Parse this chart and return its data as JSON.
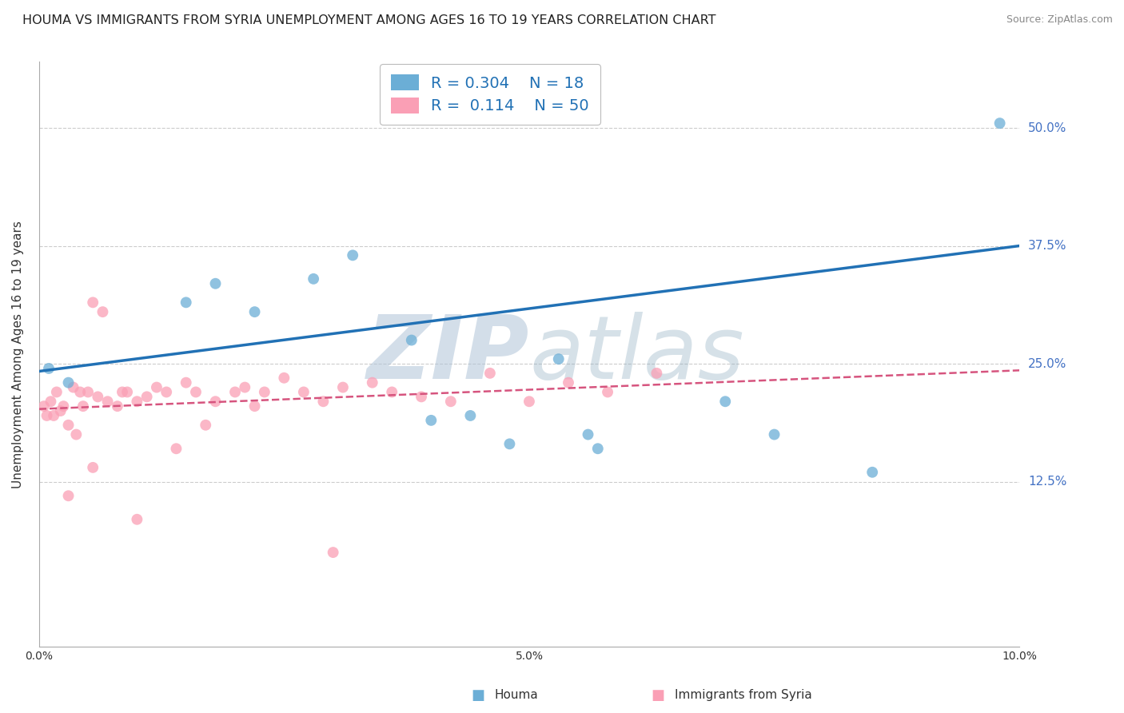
{
  "title": "HOUMA VS IMMIGRANTS FROM SYRIA UNEMPLOYMENT AMONG AGES 16 TO 19 YEARS CORRELATION CHART",
  "source_text": "Source: ZipAtlas.com",
  "ylabel": "Unemployment Among Ages 16 to 19 years",
  "xlim": [
    0.0,
    10.0
  ],
  "ylim": [
    -5.0,
    57.0
  ],
  "ytick_labels": [
    "12.5%",
    "25.0%",
    "37.5%",
    "50.0%"
  ],
  "ytick_values": [
    12.5,
    25.0,
    37.5,
    50.0
  ],
  "xtick_labels": [
    "0.0%",
    "",
    "",
    "",
    "",
    "5.0%",
    "",
    "",
    "",
    "",
    "10.0%"
  ],
  "xtick_values": [
    0.0,
    1.0,
    2.0,
    3.0,
    4.0,
    5.0,
    6.0,
    7.0,
    8.0,
    9.0,
    10.0
  ],
  "houma_color": "#6baed6",
  "syria_color": "#fa9fb5",
  "houma_line_color": "#2171b5",
  "syria_line_color": "#d6547e",
  "legend_R_houma": "0.304",
  "legend_N_houma": "18",
  "legend_R_syria": "0.114",
  "legend_N_syria": "50",
  "houma_label": "Houma",
  "syria_label": "Immigrants from Syria",
  "houma_scatter_x": [
    0.1,
    0.3,
    1.5,
    1.8,
    2.2,
    2.8,
    3.2,
    3.8,
    4.0,
    4.4,
    5.3,
    5.6,
    5.7,
    7.0,
    7.5,
    8.5,
    9.8,
    4.8
  ],
  "houma_scatter_y": [
    24.5,
    23.0,
    31.5,
    33.5,
    30.5,
    34.0,
    36.5,
    27.5,
    19.0,
    19.5,
    25.5,
    17.5,
    16.0,
    21.0,
    17.5,
    13.5,
    50.5,
    16.5
  ],
  "syria_scatter_x": [
    0.05,
    0.08,
    0.12,
    0.15,
    0.18,
    0.22,
    0.25,
    0.3,
    0.35,
    0.38,
    0.42,
    0.45,
    0.5,
    0.55,
    0.6,
    0.65,
    0.7,
    0.8,
    0.85,
    0.9,
    1.0,
    1.1,
    1.2,
    1.3,
    1.5,
    1.6,
    1.8,
    2.0,
    2.1,
    2.3,
    2.5,
    2.7,
    2.9,
    3.1,
    3.4,
    3.6,
    3.9,
    4.2,
    4.6,
    5.0,
    5.4,
    5.8,
    6.3,
    1.4,
    2.2,
    0.55,
    1.7,
    0.3,
    1.0,
    3.0
  ],
  "syria_scatter_y": [
    20.5,
    19.5,
    21.0,
    19.5,
    22.0,
    20.0,
    20.5,
    18.5,
    22.5,
    17.5,
    22.0,
    20.5,
    22.0,
    31.5,
    21.5,
    30.5,
    21.0,
    20.5,
    22.0,
    22.0,
    21.0,
    21.5,
    22.5,
    22.0,
    23.0,
    22.0,
    21.0,
    22.0,
    22.5,
    22.0,
    23.5,
    22.0,
    21.0,
    22.5,
    23.0,
    22.0,
    21.5,
    21.0,
    24.0,
    21.0,
    23.0,
    22.0,
    24.0,
    16.0,
    20.5,
    14.0,
    18.5,
    11.0,
    8.5,
    5.0
  ],
  "houma_line_x0": 0.0,
  "houma_line_y0": 24.2,
  "houma_line_x1": 10.0,
  "houma_line_y1": 37.5,
  "syria_line_x0": 0.0,
  "syria_line_y0": 20.2,
  "syria_line_x1": 10.0,
  "syria_line_y1": 24.3,
  "bg_color": "#ffffff",
  "grid_color": "#cccccc",
  "right_label_color": "#4472c4",
  "title_fontsize": 11.5,
  "axis_fontsize": 11,
  "tick_fontsize": 10,
  "scatter_size": 100,
  "watermark_color": "#ccd9e8",
  "watermark_alpha": 0.6
}
